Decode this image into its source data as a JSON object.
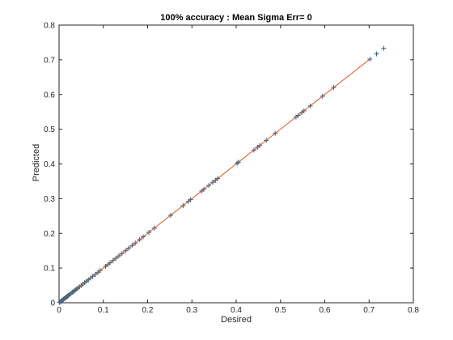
{
  "chart_data": {
    "type": "scatter",
    "title": "100% accuracy :  Mean Sigma Err= 0",
    "xlabel": "Desired",
    "ylabel": "Predicted",
    "xlim": [
      0,
      0.8
    ],
    "ylim": [
      0,
      0.8
    ],
    "xticks": [
      "0",
      "0.1",
      "0.2",
      "0.3",
      "0.4",
      "0.5",
      "0.6",
      "0.7",
      "0.8"
    ],
    "yticks": [
      "0",
      "0.1",
      "0.2",
      "0.3",
      "0.4",
      "0.5",
      "0.6",
      "0.7",
      "0.8"
    ],
    "grid": false,
    "box": true,
    "series": [
      {
        "marker": "+",
        "color": "#1f5f87",
        "points": [
          [
            0.001,
            0.001
          ],
          [
            0.003,
            0.003
          ],
          [
            0.005,
            0.005
          ],
          [
            0.007,
            0.007
          ],
          [
            0.009,
            0.009
          ],
          [
            0.011,
            0.011
          ],
          [
            0.013,
            0.013
          ],
          [
            0.015,
            0.015
          ],
          [
            0.017,
            0.017
          ],
          [
            0.019,
            0.019
          ],
          [
            0.021,
            0.021
          ],
          [
            0.024,
            0.024
          ],
          [
            0.027,
            0.027
          ],
          [
            0.03,
            0.03
          ],
          [
            0.033,
            0.033
          ],
          [
            0.036,
            0.036
          ],
          [
            0.039,
            0.039
          ],
          [
            0.042,
            0.042
          ],
          [
            0.046,
            0.046
          ],
          [
            0.05,
            0.05
          ],
          [
            0.054,
            0.054
          ],
          [
            0.058,
            0.058
          ],
          [
            0.062,
            0.062
          ],
          [
            0.066,
            0.066
          ],
          [
            0.071,
            0.071
          ],
          [
            0.076,
            0.076
          ],
          [
            0.082,
            0.082
          ],
          [
            0.088,
            0.088
          ],
          [
            0.093,
            0.093
          ],
          [
            0.105,
            0.105
          ],
          [
            0.11,
            0.11
          ],
          [
            0.115,
            0.115
          ],
          [
            0.122,
            0.122
          ],
          [
            0.128,
            0.128
          ],
          [
            0.135,
            0.135
          ],
          [
            0.142,
            0.142
          ],
          [
            0.15,
            0.15
          ],
          [
            0.157,
            0.157
          ],
          [
            0.165,
            0.165
          ],
          [
            0.172,
            0.172
          ],
          [
            0.182,
            0.182
          ],
          [
            0.19,
            0.19
          ],
          [
            0.203,
            0.203
          ],
          [
            0.215,
            0.215
          ],
          [
            0.252,
            0.252
          ],
          [
            0.28,
            0.28
          ],
          [
            0.292,
            0.292
          ],
          [
            0.297,
            0.297
          ],
          [
            0.322,
            0.322
          ],
          [
            0.327,
            0.327
          ],
          [
            0.338,
            0.338
          ],
          [
            0.347,
            0.347
          ],
          [
            0.353,
            0.353
          ],
          [
            0.358,
            0.358
          ],
          [
            0.402,
            0.402
          ],
          [
            0.405,
            0.405
          ],
          [
            0.44,
            0.44
          ],
          [
            0.448,
            0.448
          ],
          [
            0.453,
            0.453
          ],
          [
            0.468,
            0.468
          ],
          [
            0.488,
            0.488
          ],
          [
            0.535,
            0.535
          ],
          [
            0.54,
            0.54
          ],
          [
            0.548,
            0.548
          ],
          [
            0.553,
            0.553
          ],
          [
            0.567,
            0.567
          ],
          [
            0.595,
            0.595
          ],
          [
            0.62,
            0.62
          ],
          [
            0.702,
            0.702
          ],
          [
            0.717,
            0.717
          ],
          [
            0.733,
            0.733
          ]
        ]
      },
      {
        "type": "line",
        "color": "#d95319",
        "points": [
          [
            0,
            0
          ],
          [
            0.702,
            0.702
          ]
        ]
      }
    ]
  }
}
